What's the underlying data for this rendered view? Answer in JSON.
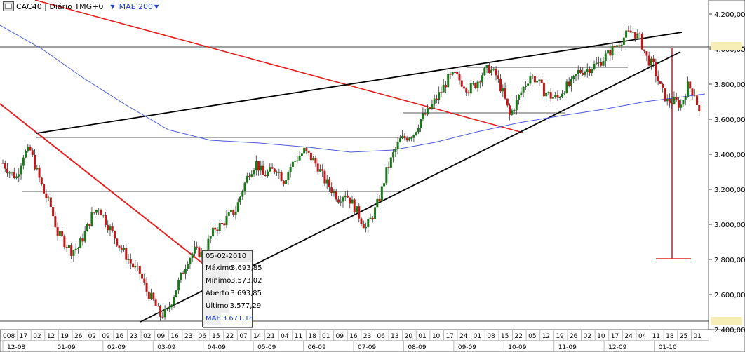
{
  "header": {
    "title": "CAC40 | Diário TMG+0",
    "indicator": "MAE 200",
    "colors": {
      "indicator": "#1f3fbf"
    }
  },
  "tooltip": {
    "date": "05-02-2010",
    "rows": [
      {
        "label": "Máximo",
        "value": "3.693,85"
      },
      {
        "label": "Mínimo",
        "value": "3.573,02"
      },
      {
        "label": "Aberto",
        "value": "3.693,85"
      },
      {
        "label": "Último",
        "value": "3.577,29"
      },
      {
        "label": "MAE",
        "value": "3.671,18"
      }
    ]
  },
  "chart_data": {
    "type": "candlestick",
    "ylim": [
      2400,
      4280
    ],
    "y_ticks": [
      "4.200,00",
      "4.000,00",
      "3.800,00",
      "3.600,00",
      "3.400,00",
      "3.200,00",
      "3.000,00",
      "2.800,00",
      "2.600,00",
      "2.400,00"
    ],
    "y_tick_values": [
      4200,
      4000,
      3800,
      3600,
      3400,
      3200,
      3000,
      2800,
      2600,
      2400
    ],
    "x_day_ticks": [
      "008",
      "17",
      "02",
      "12",
      "19",
      "26",
      "02",
      "09",
      "16",
      "23",
      "02",
      "09",
      "16",
      "23",
      "06",
      "15",
      "22",
      "07",
      "14",
      "21",
      "04",
      "11",
      "18",
      "01",
      "09",
      "16",
      "23",
      "06",
      "13",
      "20",
      "01",
      "10",
      "17",
      "24",
      "01",
      "08",
      "15",
      "22",
      "05",
      "12",
      "19",
      "26",
      "02",
      "10",
      "17",
      "24",
      "04",
      "11",
      "18",
      "25",
      "01"
    ],
    "x_month_ticks": [
      "12-08",
      "01-09",
      "02-09",
      "03-09",
      "04-09",
      "05-09",
      "06-09",
      "07-09",
      "08-09",
      "09-09",
      "10-09",
      "11-09",
      "12-09",
      "01-10"
    ],
    "last_close": 3577.29,
    "moving_average": {
      "name": "MAE 200",
      "color": "#4b5bd8"
    },
    "price_path": [
      3350,
      3300,
      3270,
      3400,
      3420,
      3300,
      3180,
      3100,
      2950,
      2900,
      2850,
      2870,
      2950,
      3050,
      3100,
      3020,
      2950,
      2880,
      2820,
      2760,
      2720,
      2620,
      2560,
      2480,
      2500,
      2600,
      2700,
      2800,
      2850,
      2830,
      2900,
      2980,
      3000,
      3050,
      3080,
      3200,
      3300,
      3350,
      3280,
      3300,
      3320,
      3250,
      3330,
      3380,
      3420,
      3380,
      3330,
      3250,
      3200,
      3150,
      3180,
      3120,
      3050,
      2980,
      3050,
      3150,
      3300,
      3400,
      3480,
      3500,
      3520,
      3600,
      3640,
      3700,
      3760,
      3830,
      3850,
      3810,
      3770,
      3800,
      3860,
      3890,
      3850,
      3750,
      3620,
      3700,
      3780,
      3850,
      3820,
      3760,
      3730,
      3720,
      3780,
      3800,
      3870,
      3880,
      3900,
      3920,
      3960,
      4000,
      4040,
      4080,
      4100,
      4060,
      3950,
      3900,
      3780,
      3700,
      3700,
      3680,
      3790,
      3750,
      3577
    ]
  }
}
